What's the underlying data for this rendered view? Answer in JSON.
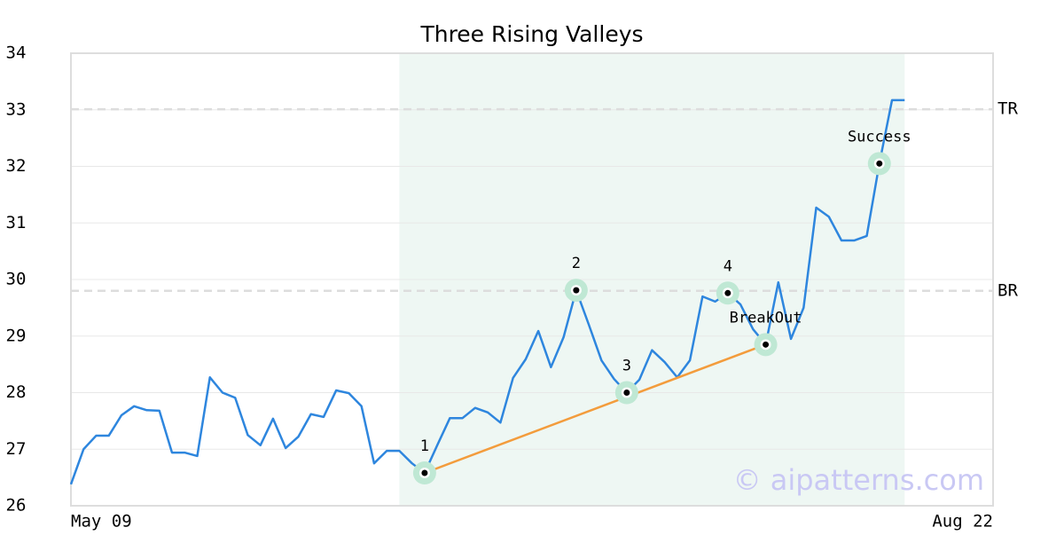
{
  "chart_data": {
    "type": "line",
    "title": "Three Rising Valleys",
    "values": [
      26.38,
      27.0,
      27.24,
      27.24,
      27.6,
      27.76,
      27.69,
      27.68,
      26.94,
      26.94,
      26.88,
      28.27,
      28.0,
      27.91,
      27.25,
      27.07,
      27.54,
      27.02,
      27.22,
      27.62,
      27.57,
      28.04,
      27.99,
      27.76,
      26.75,
      26.97,
      26.97,
      26.75,
      26.58,
      27.07,
      27.55,
      27.55,
      27.73,
      27.65,
      27.47,
      28.26,
      28.59,
      29.09,
      28.45,
      28.98,
      29.81,
      29.2,
      28.57,
      28.24,
      28.0,
      28.23,
      28.75,
      28.54,
      28.27,
      28.57,
      29.7,
      29.61,
      29.76,
      29.56,
      29.12,
      28.85,
      29.95,
      28.95,
      29.5,
      31.27,
      31.11,
      30.69,
      30.69,
      30.77,
      32.05,
      33.17,
      33.17
    ],
    "color": "#2e86de",
    "xlim": [
      0,
      73
    ],
    "xticks": [
      {
        "value": 0,
        "label": "May 09"
      },
      {
        "value": 73,
        "label": "Aug 22"
      }
    ],
    "ylim": [
      26,
      34
    ],
    "yticks": [
      26,
      27,
      28,
      29,
      30,
      31,
      32,
      33,
      34
    ],
    "grid": true,
    "shaded_range": [
      26,
      66
    ],
    "shade_color": "#eef7f3",
    "levels": [
      {
        "name": "TR",
        "value": 33.01
      },
      {
        "name": "BR",
        "value": 29.8
      }
    ],
    "points": [
      {
        "label": "1",
        "index": 28,
        "value": 26.58
      },
      {
        "label": "2",
        "index": 40,
        "value": 29.81
      },
      {
        "label": "3",
        "index": 44,
        "value": 28.0
      },
      {
        "label": "4",
        "index": 52,
        "value": 29.76
      },
      {
        "label": "BreakOut",
        "index": 55,
        "value": 28.85
      },
      {
        "label": "Success",
        "index": 64,
        "value": 32.05
      }
    ],
    "trend_line": {
      "from_point": 0,
      "to_point": 4,
      "color": "#f39c3c"
    },
    "watermark": "© aipatterns.com"
  }
}
